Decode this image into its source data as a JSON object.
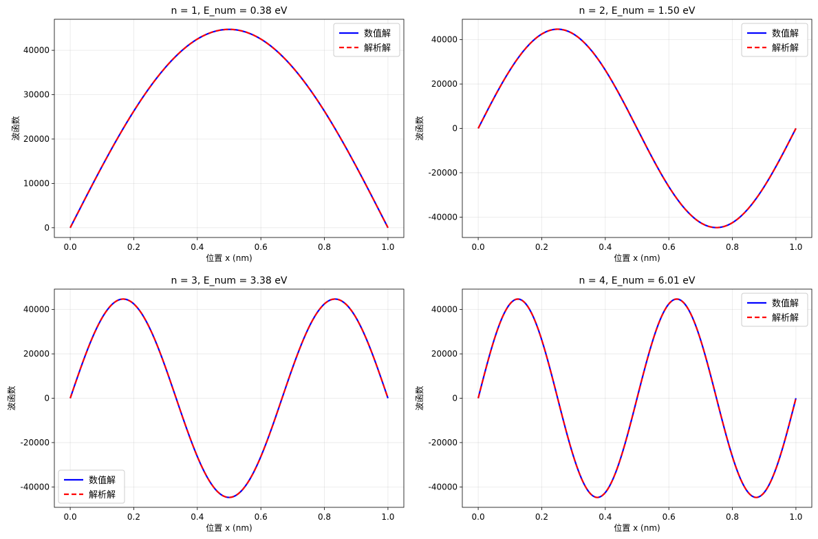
{
  "chart_data": [
    {
      "type": "line",
      "n": 1,
      "title": "n = 1, E_num = 0.38 eV",
      "xlabel": "位置 x (nm)",
      "ylabel": "波函数",
      "xlim": [
        -0.05,
        1.05
      ],
      "ylim": [
        -2200,
        47000
      ],
      "xticks": [
        0.0,
        0.2,
        0.4,
        0.6,
        0.8,
        1.0
      ],
      "xtick_labels": [
        "0.0",
        "0.2",
        "0.4",
        "0.6",
        "0.8",
        "1.0"
      ],
      "yticks": [
        0,
        10000,
        20000,
        30000,
        40000
      ],
      "ytick_labels": [
        "0",
        "10000",
        "20000",
        "30000",
        "40000"
      ],
      "amplitude": 44721,
      "grid": true,
      "legend": {
        "position": "upper-right",
        "entries": [
          "数值解",
          "解析解"
        ]
      },
      "series": [
        {
          "name": "数值解",
          "color": "#0000ff",
          "style": "solid",
          "function": "A*sin(n*pi*x)"
        },
        {
          "name": "解析解",
          "color": "#ff0000",
          "style": "dashed",
          "function": "A*sin(n*pi*x)"
        }
      ]
    },
    {
      "type": "line",
      "n": 2,
      "title": "n = 2, E_num = 1.50 eV",
      "xlabel": "位置 x (nm)",
      "ylabel": "波函数",
      "xlim": [
        -0.05,
        1.05
      ],
      "ylim": [
        -49200,
        49200
      ],
      "xticks": [
        0.0,
        0.2,
        0.4,
        0.6,
        0.8,
        1.0
      ],
      "xtick_labels": [
        "0.0",
        "0.2",
        "0.4",
        "0.6",
        "0.8",
        "1.0"
      ],
      "yticks": [
        -40000,
        -20000,
        0,
        20000,
        40000
      ],
      "ytick_labels": [
        "-40000",
        "-20000",
        "0",
        "20000",
        "40000"
      ],
      "amplitude": 44721,
      "grid": true,
      "legend": {
        "position": "upper-right",
        "entries": [
          "数值解",
          "解析解"
        ]
      },
      "series": [
        {
          "name": "数值解",
          "color": "#0000ff",
          "style": "solid",
          "function": "A*sin(n*pi*x)"
        },
        {
          "name": "解析解",
          "color": "#ff0000",
          "style": "dashed",
          "function": "A*sin(n*pi*x)"
        }
      ]
    },
    {
      "type": "line",
      "n": 3,
      "title": "n = 3, E_num = 3.38 eV",
      "xlabel": "位置 x (nm)",
      "ylabel": "波函数",
      "xlim": [
        -0.05,
        1.05
      ],
      "ylim": [
        -49200,
        49200
      ],
      "xticks": [
        0.0,
        0.2,
        0.4,
        0.6,
        0.8,
        1.0
      ],
      "xtick_labels": [
        "0.0",
        "0.2",
        "0.4",
        "0.6",
        "0.8",
        "1.0"
      ],
      "yticks": [
        -40000,
        -20000,
        0,
        20000,
        40000
      ],
      "ytick_labels": [
        "-40000",
        "-20000",
        "0",
        "20000",
        "40000"
      ],
      "amplitude": 44721,
      "grid": true,
      "legend": {
        "position": "lower-left",
        "entries": [
          "数值解",
          "解析解"
        ]
      },
      "series": [
        {
          "name": "数值解",
          "color": "#0000ff",
          "style": "solid",
          "function": "A*sin(n*pi*x)"
        },
        {
          "name": "解析解",
          "color": "#ff0000",
          "style": "dashed",
          "function": "A*sin(n*pi*x)"
        }
      ]
    },
    {
      "type": "line",
      "n": 4,
      "title": "n = 4, E_num = 6.01 eV",
      "xlabel": "位置 x (nm)",
      "ylabel": "波函数",
      "xlim": [
        -0.05,
        1.05
      ],
      "ylim": [
        -49200,
        49200
      ],
      "xticks": [
        0.0,
        0.2,
        0.4,
        0.6,
        0.8,
        1.0
      ],
      "xtick_labels": [
        "0.0",
        "0.2",
        "0.4",
        "0.6",
        "0.8",
        "1.0"
      ],
      "yticks": [
        -40000,
        -20000,
        0,
        20000,
        40000
      ],
      "ytick_labels": [
        "-40000",
        "-20000",
        "0",
        "20000",
        "40000"
      ],
      "amplitude": 44721,
      "grid": true,
      "legend": {
        "position": "upper-right",
        "entries": [
          "数值解",
          "解析解"
        ]
      },
      "series": [
        {
          "name": "数值解",
          "color": "#0000ff",
          "style": "solid",
          "function": "A*sin(n*pi*x)"
        },
        {
          "name": "解析解",
          "color": "#ff0000",
          "style": "dashed",
          "function": "A*sin(n*pi*x)"
        }
      ]
    }
  ]
}
